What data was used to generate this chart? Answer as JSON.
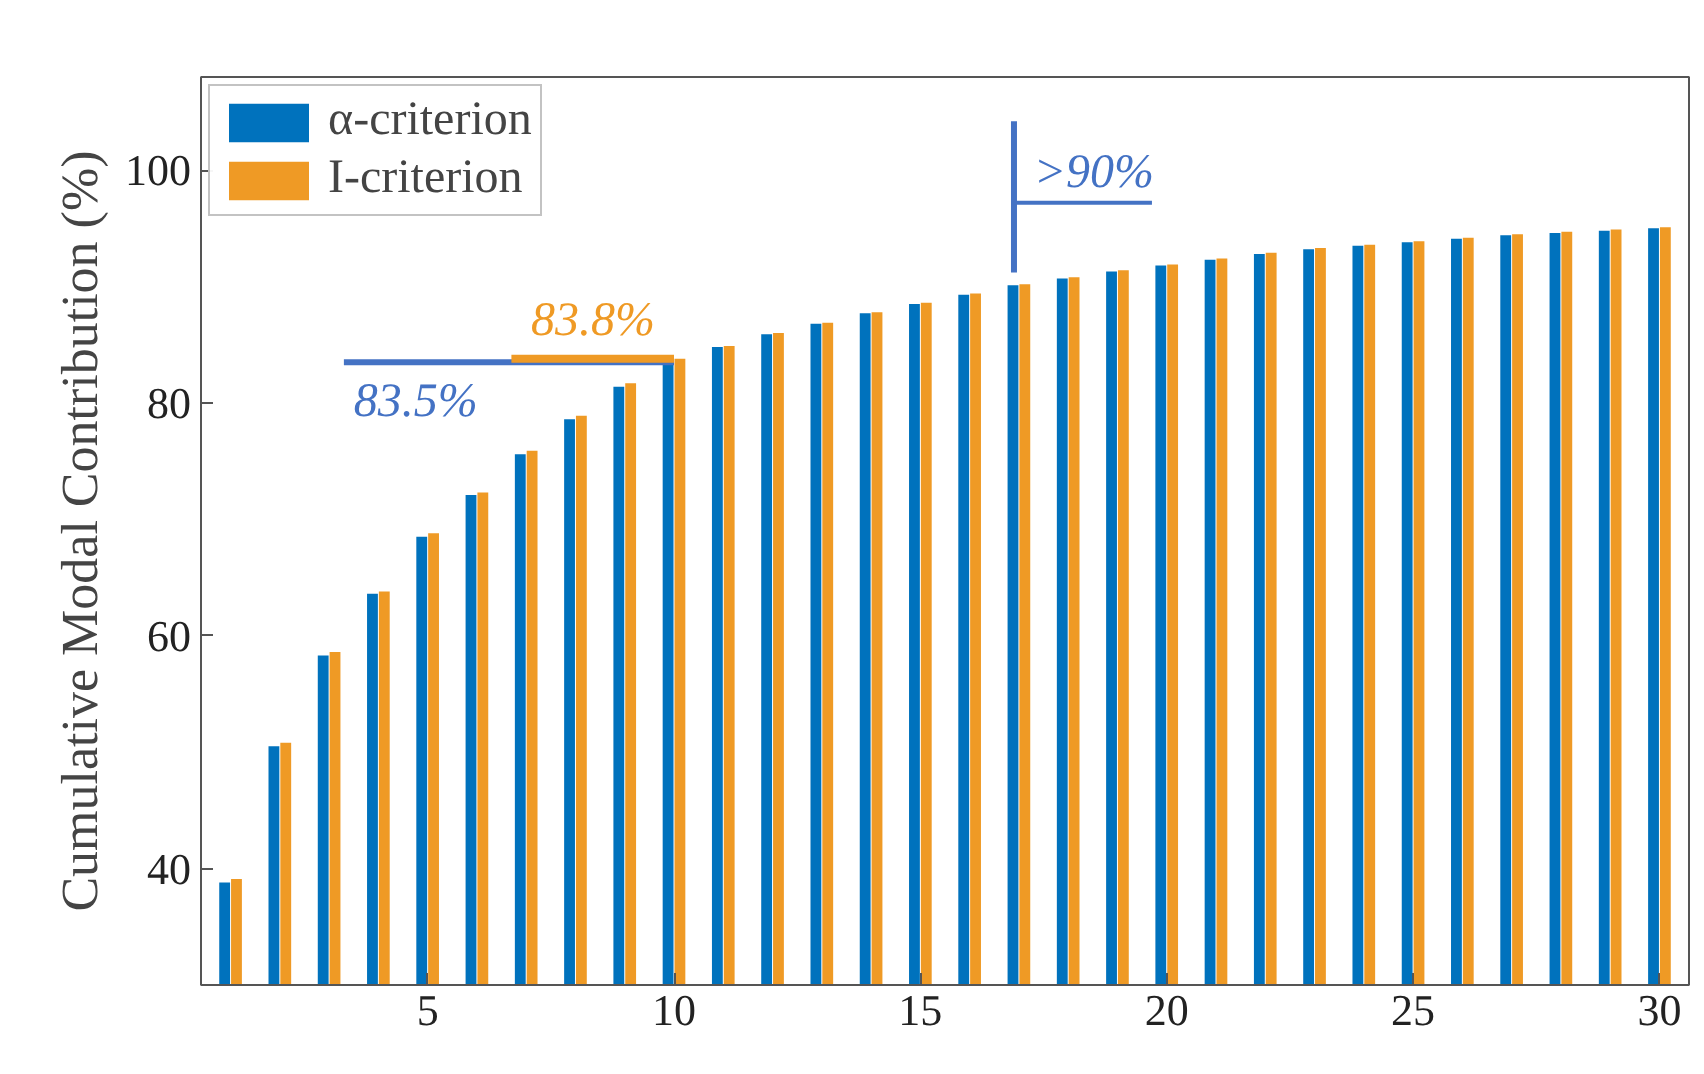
{
  "chart_data": {
    "type": "bar",
    "ylabel": "Cumulative Modal Contribution (%)",
    "x": [
      1,
      2,
      3,
      4,
      5,
      6,
      7,
      8,
      9,
      10,
      11,
      12,
      13,
      14,
      15,
      16,
      17,
      18,
      19,
      20,
      21,
      22,
      23,
      24,
      25,
      26,
      27,
      28,
      29,
      30
    ],
    "series": [
      {
        "name": "α-criterion",
        "color": "#0072bd",
        "values": [
          38.8,
          50.5,
          58.3,
          63.6,
          68.5,
          72.1,
          75.6,
          78.6,
          81.4,
          83.5,
          84.8,
          85.9,
          86.8,
          87.7,
          88.5,
          89.3,
          90.1,
          90.7,
          91.3,
          91.8,
          92.3,
          92.8,
          93.2,
          93.5,
          93.8,
          94.1,
          94.4,
          94.6,
          94.8,
          95.0
        ]
      },
      {
        "name": "I-criterion",
        "color": "#ef9a25",
        "values": [
          39.1,
          50.8,
          58.6,
          63.8,
          68.8,
          72.3,
          75.9,
          78.9,
          81.7,
          83.8,
          84.9,
          86.0,
          86.9,
          87.8,
          88.6,
          89.4,
          90.2,
          90.8,
          91.4,
          91.9,
          92.4,
          92.9,
          93.3,
          93.6,
          93.9,
          94.2,
          94.5,
          94.7,
          94.9,
          95.1
        ]
      }
    ],
    "ref_lines": [
      {
        "axis": "y",
        "value": 83.5,
        "label": "83.5%",
        "color": "#4472c4"
      },
      {
        "axis": "y",
        "value": 83.8,
        "label": "83.8%",
        "color": "#ef9a25"
      }
    ],
    "annotations": [
      ">90%"
    ],
    "xlim": [
      0.4,
      30.6
    ],
    "ylim": [
      30,
      108
    ],
    "xticks": [
      5,
      10,
      15,
      20,
      25,
      30
    ],
    "yticks": [
      40,
      60,
      80,
      100
    ],
    "grid": false,
    "legend": "top left"
  }
}
